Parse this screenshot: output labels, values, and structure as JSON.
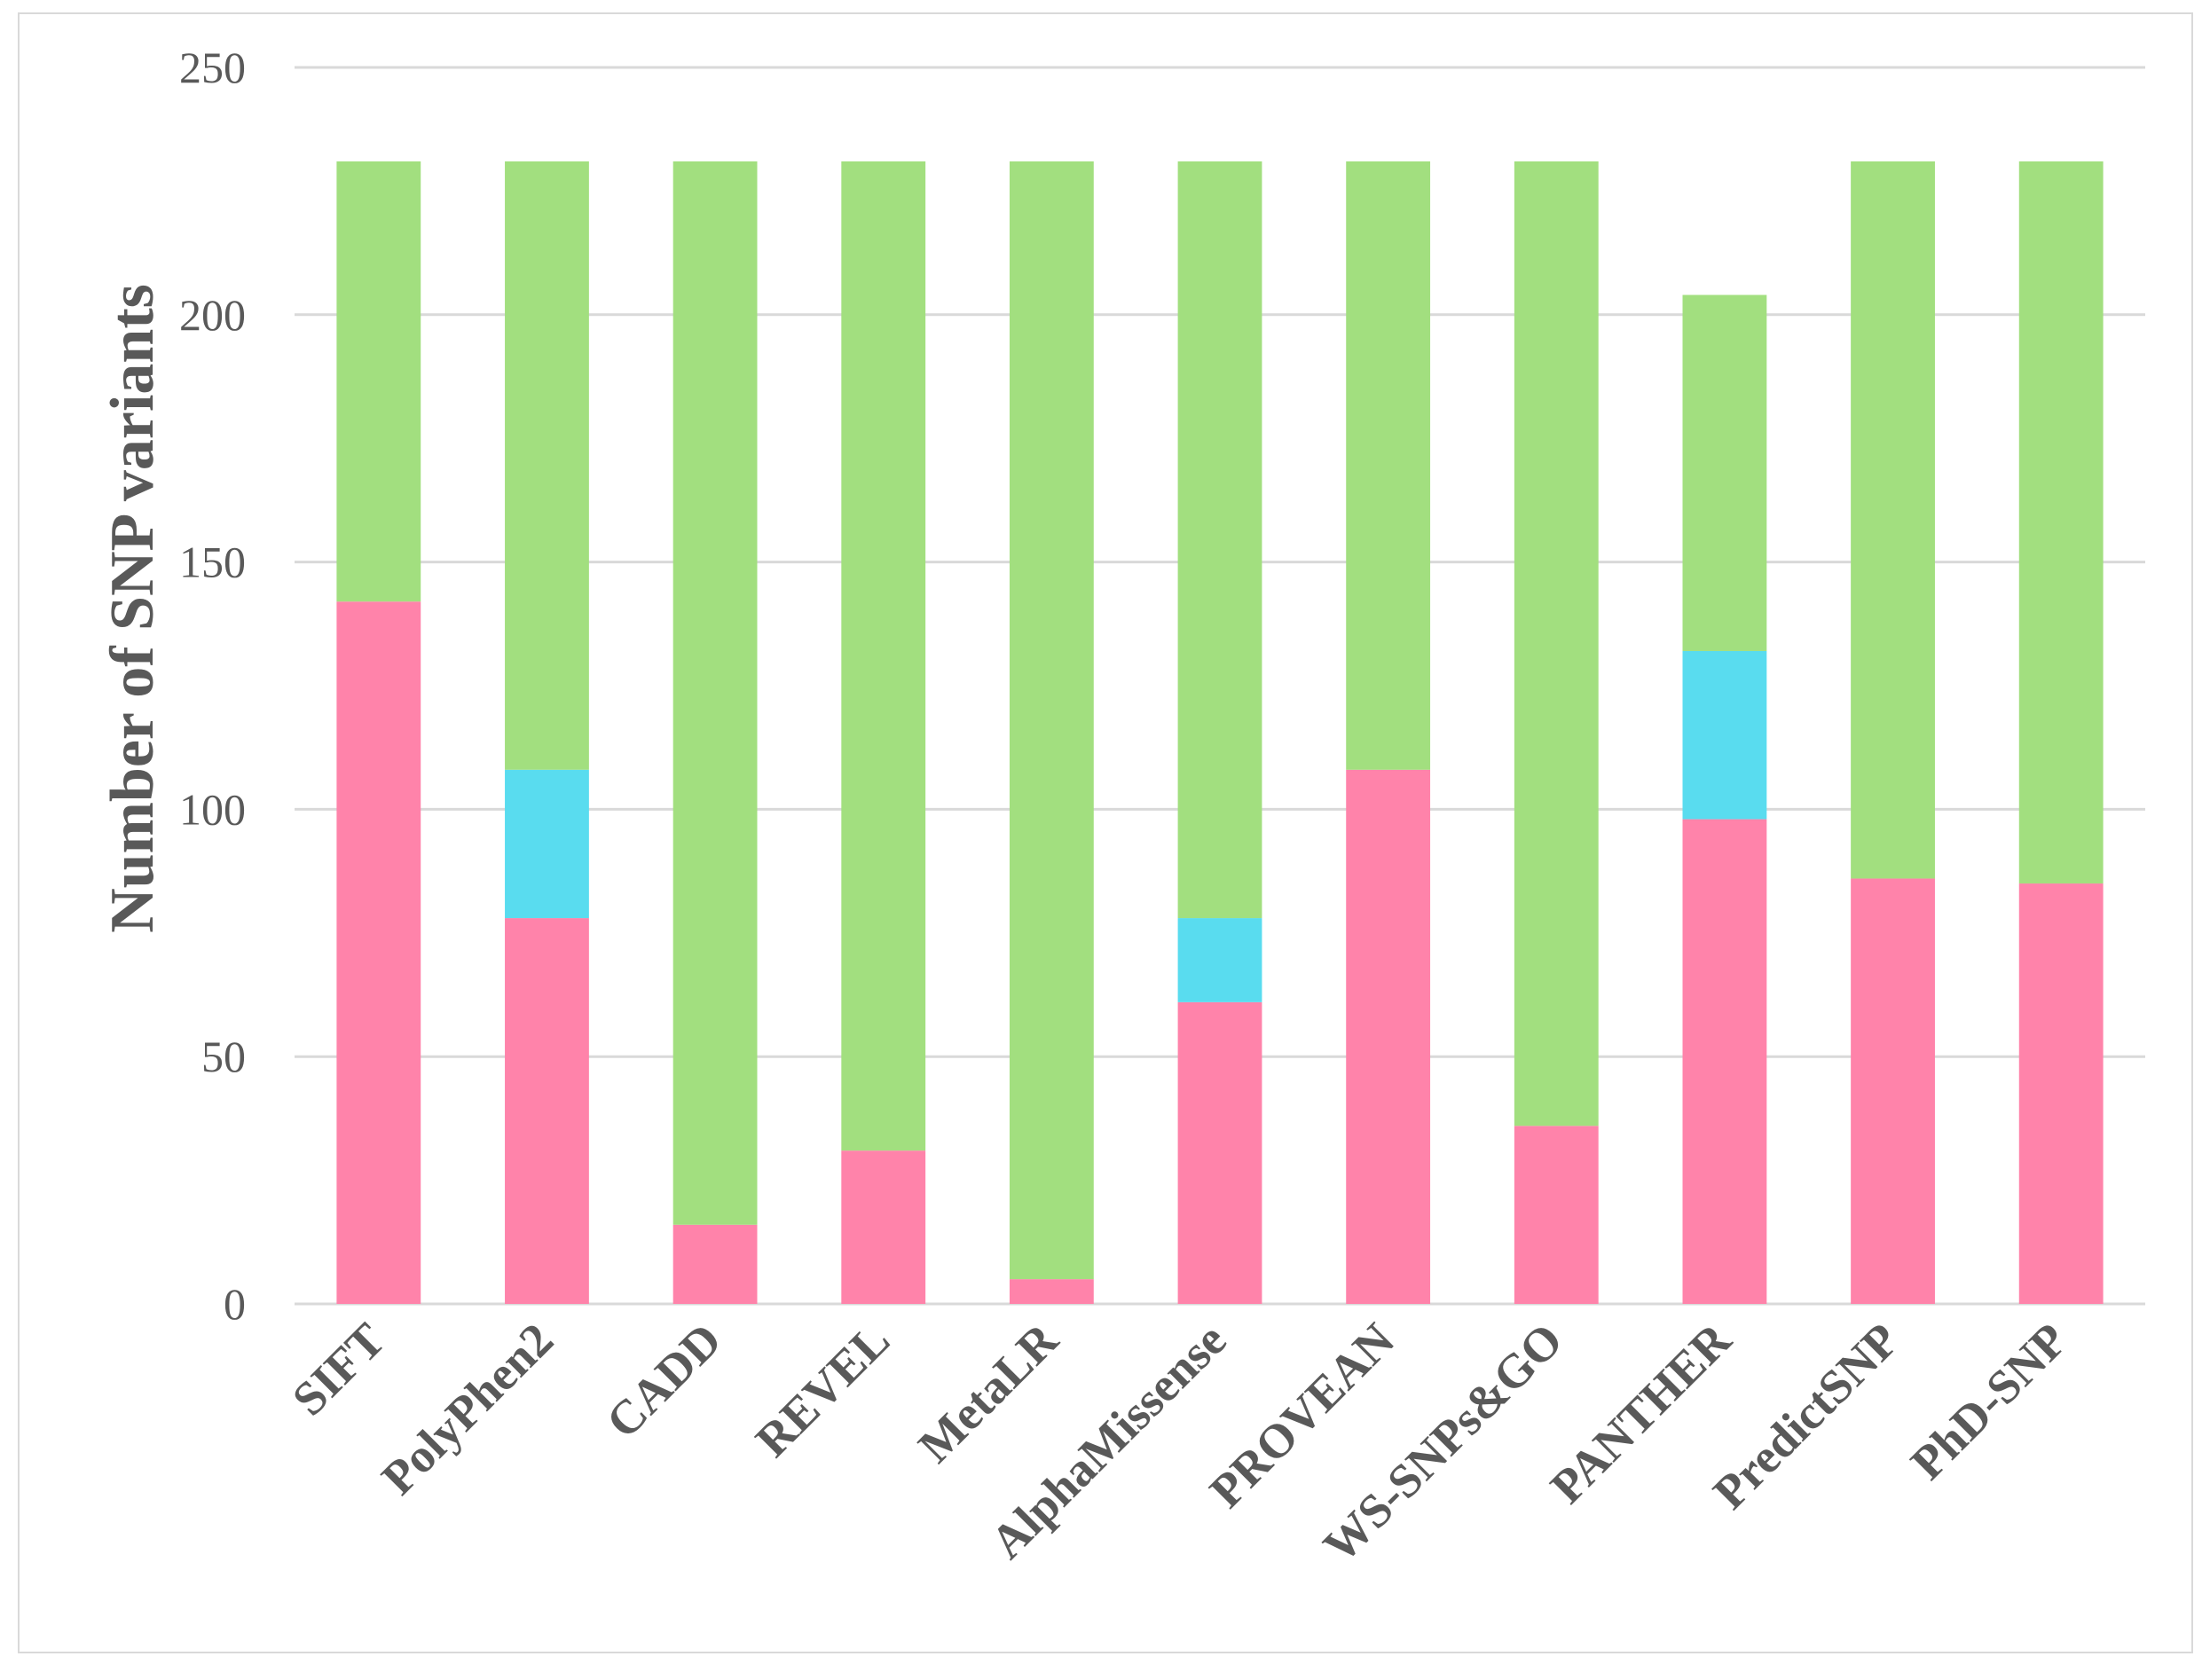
{
  "chart_data": {
    "type": "bar",
    "stacked": true,
    "title": "",
    "xlabel": "",
    "ylabel": "Number of SNP variants",
    "ylim": [
      0,
      250
    ],
    "yticks": [
      0,
      50,
      100,
      150,
      200,
      250
    ],
    "grid": true,
    "legend": "none",
    "categories": [
      "SIFT",
      "PolyPhen2",
      "CADD",
      "REVEL",
      "MetaLR",
      "AlphaMissense",
      "PROVEAN",
      "WS-SNPs&GO",
      "PANTHER",
      "PredictSNP",
      "PhD-SNP"
    ],
    "series": [
      {
        "color": "#ff83aa",
        "values": [
          142,
          78,
          16,
          31,
          5,
          61,
          108,
          36,
          98,
          86,
          85
        ]
      },
      {
        "color": "#59dcef",
        "values": [
          0,
          30,
          0,
          0,
          0,
          17,
          0,
          0,
          34,
          0,
          0
        ]
      },
      {
        "color": "#a2df7f",
        "values": [
          89,
          123,
          215,
          200,
          226,
          153,
          123,
          195,
          72,
          145,
          146
        ]
      }
    ]
  }
}
